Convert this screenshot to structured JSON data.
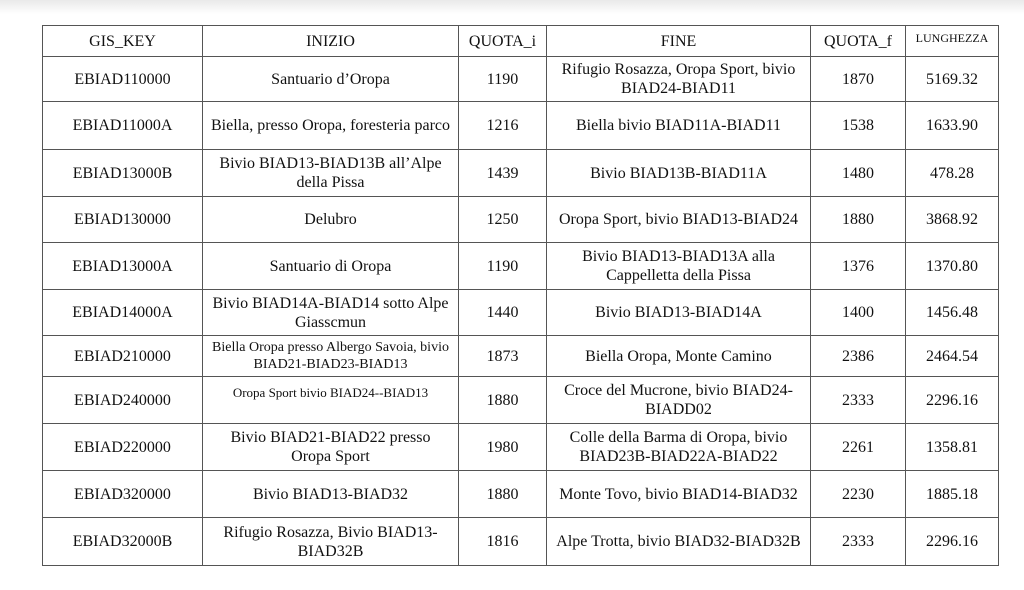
{
  "table": {
    "header": [
      "GIS_KEY",
      "INIZIO",
      "QUOTA_i",
      "FINE",
      "QUOTA_f",
      "LUNGHEZZA"
    ],
    "rows": [
      [
        "EBIAD110000",
        "Santuario d’Oropa",
        "1190",
        "Rifugio Rosazza, Oropa Sport, bivio BIAD24-BIAD11",
        "1870",
        "5169.32"
      ],
      [
        "EBIAD11000A",
        "Biella, presso Oropa, foresteria parco",
        "1216",
        "Biella bivio BIAD11A-BIAD11",
        "1538",
        "1633.90"
      ],
      [
        "EBIAD13000B",
        "Bivio BIAD13-BIAD13B all’Alpe della Pissa",
        "1439",
        "Bivio BIAD13B-BIAD11A",
        "1480",
        "478.28"
      ],
      [
        "EBIAD130000",
        "Delubro",
        "1250",
        "Oropa Sport, bivio BIAD13-BIAD24",
        "1880",
        "3868.92"
      ],
      [
        "EBIAD13000A",
        "Santuario di Oropa",
        "1190",
        "Bivio BIAD13-BIAD13A alla Cappelletta della Pissa",
        "1376",
        "1370.80"
      ],
      [
        "EBIAD14000A",
        "Bivio BIAD14A-BIAD14 sotto Alpe Giasscmun",
        "1440",
        "Bivio BIAD13-BIAD14A",
        "1400",
        "1456.48"
      ],
      [
        "EBIAD210000",
        "Biella Oropa presso Albergo Savoia, bivio BIAD21-BIAD23-BIAD13",
        "1873",
        "Biella Oropa, Monte Camino",
        "2386",
        "2464.54"
      ],
      [
        "EBIAD240000",
        "Oropa Sport bivio BIAD24--BIAD13",
        "1880",
        "Croce del Mucrone, bivio BIAD24-BIADD02",
        "2333",
        "2296.16"
      ],
      [
        "EBIAD220000",
        "Bivio BIAD21-BIAD22 presso Oropa Sport",
        "1980",
        "Colle della Barma di Oropa, bivio BIAD23B-BIAD22A-BIAD22",
        "2261",
        "1358.81"
      ],
      [
        "EBIAD320000",
        "Bivio BIAD13-BIAD32",
        "1880",
        "Monte Tovo, bivio BIAD14-BIAD32",
        "2230",
        "1885.18"
      ],
      [
        "EBIAD32000B",
        "Rifugio Rosazza, Bivio BIAD13-BIAD32B",
        "1816",
        "Alpe Trotta, bivio BIAD32-BIAD32B",
        "2333",
        "2296.16"
      ]
    ]
  }
}
